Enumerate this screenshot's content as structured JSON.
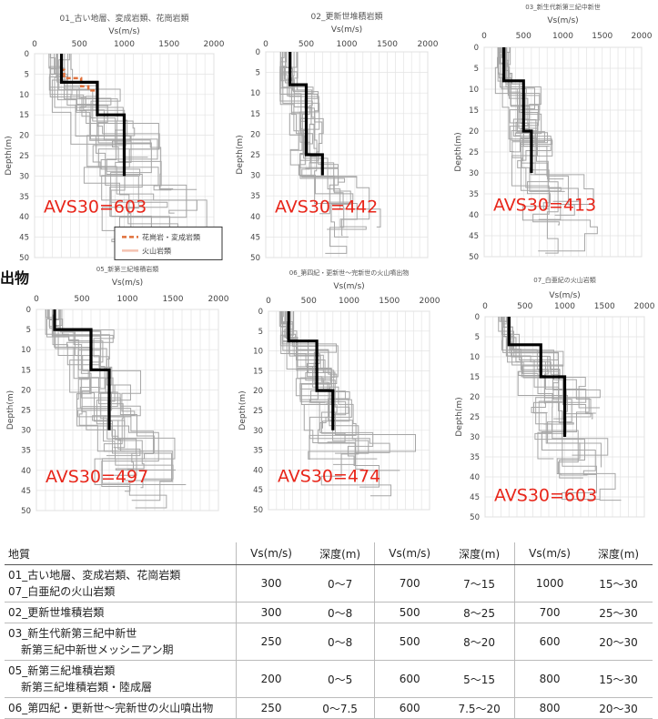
{
  "side_label": "出物",
  "chart_data": [
    {
      "type": "line",
      "title": "01_古い地層、変成岩類、花崗岩類",
      "xlabel": "Vs(m/s)",
      "ylabel": "Depth(m)",
      "xlim": [
        0,
        2000
      ],
      "ylim": [
        50,
        0
      ],
      "xticks": [
        0,
        500,
        1000,
        1500,
        2000
      ],
      "yticks": [
        0,
        5,
        10,
        15,
        20,
        25,
        30,
        35,
        40,
        45,
        50
      ],
      "grid": true,
      "avs_label": "AVS30=603",
      "legend": [
        "花崗岩・変成岩類",
        "火山岩類"
      ],
      "profile": {
        "vs": [
          300,
          700,
          1000
        ],
        "depth_breaks": [
          0,
          7,
          15,
          30
        ]
      },
      "overlay_profile": {
        "vs": [
          300,
          300,
          330,
          520,
          600,
          700
        ],
        "depth": [
          0,
          3,
          4,
          6,
          8,
          9
        ]
      },
      "colors": {
        "profile": "#000000",
        "background": "#a6a6a6",
        "legend_1": "#e0703a",
        "legend_2": "#f4c2b0",
        "annotation": "#e8261a"
      }
    },
    {
      "type": "line",
      "title": "02_更新世堆積岩類",
      "xlabel": "Vs(m/s)",
      "ylabel": "Depth(m)",
      "xlim": [
        0,
        2000
      ],
      "ylim": [
        50,
        0
      ],
      "xticks": [
        0,
        500,
        1000,
        1500,
        2000
      ],
      "yticks": [
        0,
        5,
        10,
        15,
        20,
        25,
        30,
        35,
        40,
        45,
        50
      ],
      "grid": true,
      "avs_label": "AVS30=442",
      "profile": {
        "vs": [
          300,
          500,
          700
        ],
        "depth_breaks": [
          0,
          8,
          25,
          30
        ]
      }
    },
    {
      "type": "line",
      "title": "03_新生代新第三紀中新世",
      "xlabel": "Vs(m/s)",
      "ylabel": "Depth(m)",
      "xlim": [
        0,
        2000
      ],
      "ylim": [
        50,
        0
      ],
      "xticks": [
        0,
        500,
        1000,
        1500,
        2000
      ],
      "yticks": [
        0,
        5,
        10,
        15,
        20,
        25,
        30,
        35,
        40,
        45,
        50
      ],
      "grid": true,
      "avs_label": "AVS30=413",
      "profile": {
        "vs": [
          250,
          500,
          600
        ],
        "depth_breaks": [
          0,
          8,
          20,
          30
        ]
      }
    },
    {
      "type": "line",
      "title": "05_新第三紀堆積岩類",
      "xlabel": "Vs(m/s)",
      "ylabel": "Depth(m)",
      "xlim": [
        0,
        2000
      ],
      "ylim": [
        50,
        0
      ],
      "xticks": [
        0,
        500,
        1000,
        1500,
        2000
      ],
      "yticks": [
        0,
        5,
        10,
        15,
        20,
        25,
        30,
        35,
        40,
        45,
        50
      ],
      "grid": true,
      "avs_label": "AVS30=497",
      "profile": {
        "vs": [
          200,
          600,
          800
        ],
        "depth_breaks": [
          0,
          5,
          15,
          30
        ]
      }
    },
    {
      "type": "line",
      "title": "06_第四紀・更新世～完新世の火山噴出物",
      "xlabel": "Vs(m/s)",
      "ylabel": "Depth(m)",
      "xlim": [
        0,
        2000
      ],
      "ylim": [
        50,
        0
      ],
      "xticks": [
        0,
        500,
        1000,
        1500,
        2000
      ],
      "yticks": [
        0,
        5,
        10,
        15,
        20,
        25,
        30,
        35,
        40,
        45,
        50
      ],
      "grid": true,
      "avs_label": "AVS30=474",
      "profile": {
        "vs": [
          250,
          600,
          800
        ],
        "depth_breaks": [
          0,
          7.5,
          20,
          30
        ]
      }
    },
    {
      "type": "line",
      "title": "07_白亜紀の火山岩類",
      "xlabel": "Vs(m/s)",
      "ylabel": "Depth(m)",
      "xlim": [
        0,
        2000
      ],
      "ylim": [
        50,
        0
      ],
      "xticks": [
        0,
        500,
        1000,
        1500,
        2000
      ],
      "yticks": [
        0,
        5,
        10,
        15,
        20,
        25,
        30,
        35,
        40,
        45,
        50
      ],
      "grid": true,
      "avs_label": "AVS30=603",
      "profile": {
        "vs": [
          300,
          700,
          1000
        ],
        "depth_breaks": [
          0,
          7,
          15,
          30
        ]
      }
    }
  ],
  "table": {
    "headers": [
      "地質",
      "Vs(m/s)",
      "深度(m)",
      "Vs(m/s)",
      "深度(m)",
      "Vs(m/s)",
      "深度(m)"
    ],
    "rows": [
      {
        "name": [
          "01_古い地層、変成岩類、花崗岩類",
          "07_白亜紀の火山岩類"
        ],
        "cells": [
          "300",
          "0～7",
          "700",
          "7～15",
          "1000",
          "15～30"
        ]
      },
      {
        "name": [
          "02_更新世堆積岩類"
        ],
        "cells": [
          "300",
          "0～8",
          "500",
          "8～25",
          "700",
          "25～30"
        ]
      },
      {
        "name": [
          "03_新生代新第三紀中新世",
          "新第三紀中新世メッシニアン期"
        ],
        "cells": [
          "250",
          "0～8",
          "500",
          "8～20",
          "600",
          "20～30"
        ]
      },
      {
        "name": [
          "05_新第三紀堆積岩類",
          "新第三紀堆積岩類・陸成層"
        ],
        "cells": [
          "200",
          "0～5",
          "600",
          "5～15",
          "800",
          "15～30"
        ]
      },
      {
        "name": [
          "06_第四紀・更新世～完新世の火山噴出物"
        ],
        "cells": [
          "250",
          "0～7.5",
          "600",
          "7.5～20",
          "800",
          "20～30"
        ]
      }
    ]
  }
}
